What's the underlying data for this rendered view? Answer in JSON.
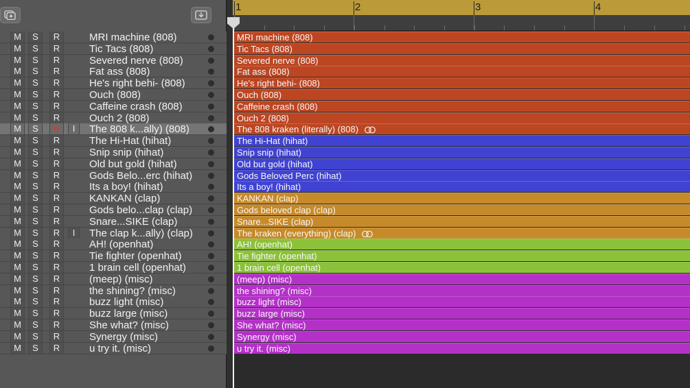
{
  "colors": {
    "orange": "#bd4622",
    "blue": "#4043d2",
    "amber": "#c78a2a",
    "green": "#8cc13a",
    "magenta": "#b431c8",
    "ruler": "#bb9a39",
    "record_armed": "#c94232"
  },
  "toolbar": {
    "add_track_icon": "add-track-icon",
    "import_icon": "download-tray-icon"
  },
  "ruler": {
    "bars": [
      "1",
      "2",
      "3",
      "4"
    ]
  },
  "controls": {
    "mute": "M",
    "solo": "S",
    "record": "R",
    "input": "I"
  },
  "tracks": [
    {
      "name": "MRI machine (808)",
      "region": "MRI machine (808)",
      "color": "orange"
    },
    {
      "name": "Tic Tacs (808)",
      "region": "Tic Tacs (808)",
      "color": "orange"
    },
    {
      "name": "Severed nerve (808)",
      "region": "Severed nerve (808)",
      "color": "orange"
    },
    {
      "name": "Fat ass (808)",
      "region": "Fat ass (808)",
      "color": "orange"
    },
    {
      "name": "He's right behi- (808)",
      "region": "He's right behi- (808)",
      "color": "orange"
    },
    {
      "name": "Ouch (808)",
      "region": "Ouch (808)",
      "color": "orange"
    },
    {
      "name": "Caffeine crash (808)",
      "region": "Caffeine crash (808)",
      "color": "orange"
    },
    {
      "name": "Ouch 2 (808)",
      "region": "Ouch 2 (808)",
      "color": "orange"
    },
    {
      "name": "The 808 k...ally) (808)",
      "region": "The 808 kraken (literally) (808)",
      "color": "orange",
      "selected": true,
      "armed": true,
      "input": true,
      "loop": true
    },
    {
      "name": "The Hi-Hat (hihat)",
      "region": "The Hi-Hat (hihat)",
      "color": "blue"
    },
    {
      "name": "Snip snip (hihat)",
      "region": "Snip snip (hihat)",
      "color": "blue"
    },
    {
      "name": "Old but gold (hihat)",
      "region": "Old but gold (hihat)",
      "color": "blue"
    },
    {
      "name": "Gods Belo...erc (hihat)",
      "region": "Gods Beloved Perc (hihat)",
      "color": "blue"
    },
    {
      "name": "Its a boy! (hihat)",
      "region": "Its a boy! (hihat)",
      "color": "blue"
    },
    {
      "name": "KANKAN (clap)",
      "region": "KANKAN (clap)",
      "color": "amber"
    },
    {
      "name": "Gods belo...clap (clap)",
      "region": "Gods beloved clap (clap)",
      "color": "amber"
    },
    {
      "name": "Snare...SIKE (clap)",
      "region": "Snare...SIKE (clap)",
      "color": "amber"
    },
    {
      "name": "The clap k...ally) (clap)",
      "region": "The kraken (everything) (clap)",
      "color": "amber",
      "input": true,
      "loop": true
    },
    {
      "name": "AH! (openhat)",
      "region": "AH! (openhat)",
      "color": "green"
    },
    {
      "name": "Tie fighter (openhat)",
      "region": "Tie fighter (openhat)",
      "color": "green"
    },
    {
      "name": "1 brain cell (openhat)",
      "region": "1 brain cell (openhat)",
      "color": "green"
    },
    {
      "name": "(meep) (misc)",
      "region": "(meep) (misc)",
      "color": "magenta"
    },
    {
      "name": "the shining? (misc)",
      "region": "the shining? (misc)",
      "color": "magenta"
    },
    {
      "name": "buzz light (misc)",
      "region": "buzz light (misc)",
      "color": "magenta"
    },
    {
      "name": "buzz large (misc)",
      "region": "buzz large (misc)",
      "color": "magenta"
    },
    {
      "name": "She what? (misc)",
      "region": "She what? (misc)",
      "color": "magenta"
    },
    {
      "name": "Synergy (misc)",
      "region": "Synergy (misc)",
      "color": "magenta"
    },
    {
      "name": "u try it. (misc)",
      "region": "u try it. (misc)",
      "color": "magenta"
    }
  ]
}
